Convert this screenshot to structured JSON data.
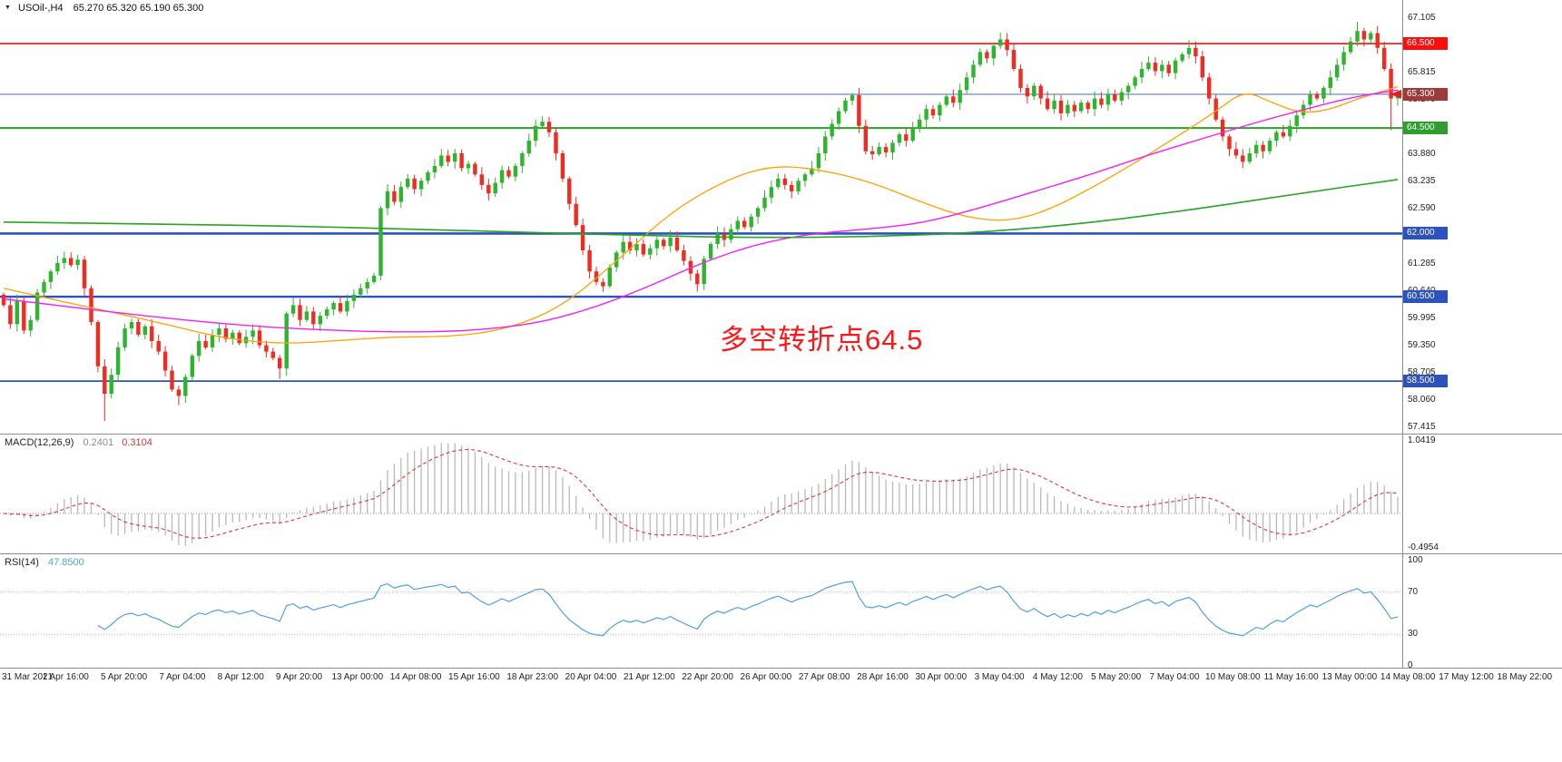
{
  "header": {
    "symbol": "USOil-,H4",
    "ohlc": "65.270 65.320 65.190 65.300"
  },
  "annotation": {
    "text": "多空转折点64.5",
    "color": "#fb1717"
  },
  "colors": {
    "up": "#2db52d",
    "down": "#ef2b22",
    "ma_fast": "#ffa200",
    "ma_mid": "#f520f5",
    "ma_slow": "#28a428",
    "macd_hist": "#b5b5b5",
    "macd_signal": "#e03535",
    "rsi": "#4f9fe8",
    "separator": "#8c8c8c",
    "axis_text": "#222222",
    "arrow": "#e02020"
  },
  "price_axis": {
    "ticks": [
      67.105,
      65.815,
      65.17,
      63.88,
      63.235,
      62.59,
      61.285,
      60.64,
      59.995,
      59.35,
      58.705,
      58.06,
      57.415
    ]
  },
  "hlines": [
    {
      "price": 66.5,
      "label": "66.500",
      "color": "#fe0d0d",
      "label_bg": "#fe0d0d",
      "width": 1.6
    },
    {
      "price": 65.3,
      "label": "65.300",
      "color": "#5b7fc4",
      "label_bg": "#a03a3a",
      "width": 1.1
    },
    {
      "price": 64.5,
      "label": "64.500",
      "color": "#2f9e2f",
      "label_bg": "#2f9e2f",
      "width": 2.0
    },
    {
      "price": 62.0,
      "label": "62.000",
      "color": "#2b52bd",
      "label_bg": "#2b52bd",
      "width": 2.6
    },
    {
      "price": 60.5,
      "label": "60.500",
      "color": "#2b52bd",
      "label_bg": "#2b52bd",
      "width": 2.4
    },
    {
      "price": 58.5,
      "label": "58.500",
      "color": "#2b52bd",
      "label_bg": "#2b52bd",
      "width": 1.8
    }
  ],
  "chart_data": [
    {
      "type": "candlestick",
      "name": "USOil H4 candles",
      "visible_range": [
        57.3,
        67.41
      ],
      "first_open": 60.55,
      "closes": [
        60.3,
        59.85,
        60.4,
        59.7,
        59.95,
        60.6,
        60.85,
        61.1,
        61.3,
        61.42,
        61.25,
        61.38,
        60.7,
        59.9,
        58.85,
        58.2,
        58.65,
        59.3,
        59.75,
        59.9,
        59.6,
        59.8,
        59.45,
        59.2,
        58.75,
        58.3,
        58.15,
        58.6,
        59.1,
        59.45,
        59.3,
        59.6,
        59.75,
        59.5,
        59.65,
        59.4,
        59.55,
        59.7,
        59.35,
        59.2,
        59.05,
        58.8,
        60.1,
        60.3,
        59.95,
        60.15,
        59.85,
        60.05,
        60.2,
        60.35,
        60.15,
        60.4,
        60.55,
        60.7,
        60.85,
        61.0,
        62.6,
        63.0,
        62.75,
        63.1,
        63.3,
        63.05,
        63.25,
        63.45,
        63.6,
        63.85,
        63.7,
        63.9,
        63.55,
        63.65,
        63.4,
        63.15,
        62.95,
        63.2,
        63.5,
        63.35,
        63.6,
        63.9,
        64.2,
        64.55,
        64.65,
        64.4,
        63.9,
        63.3,
        62.7,
        62.2,
        61.6,
        61.1,
        60.85,
        60.75,
        61.2,
        61.55,
        61.8,
        61.6,
        61.75,
        61.5,
        61.65,
        61.85,
        61.7,
        61.9,
        61.6,
        61.35,
        61.05,
        60.8,
        61.4,
        61.75,
        62.0,
        61.85,
        62.1,
        62.3,
        62.15,
        62.4,
        62.6,
        62.85,
        63.1,
        63.3,
        63.15,
        63.0,
        63.25,
        63.4,
        63.55,
        63.9,
        64.3,
        64.6,
        64.9,
        65.15,
        65.28,
        64.55,
        63.95,
        63.88,
        64.05,
        63.92,
        64.15,
        64.35,
        64.2,
        64.5,
        64.7,
        64.95,
        64.8,
        65.05,
        65.25,
        65.1,
        65.4,
        65.7,
        66.0,
        66.3,
        66.15,
        66.45,
        66.6,
        66.35,
        65.9,
        65.45,
        65.25,
        65.5,
        65.2,
        64.95,
        65.15,
        64.85,
        65.05,
        64.9,
        65.1,
        64.95,
        65.2,
        65.05,
        65.3,
        65.15,
        65.35,
        65.5,
        65.7,
        65.9,
        66.05,
        65.85,
        66.0,
        65.8,
        66.1,
        66.25,
        66.4,
        66.2,
        65.7,
        65.2,
        64.7,
        64.3,
        64.0,
        63.85,
        63.7,
        63.9,
        64.1,
        63.95,
        64.2,
        64.4,
        64.3,
        64.55,
        64.8,
        65.05,
        65.3,
        65.2,
        65.45,
        65.7,
        66.0,
        66.3,
        66.55,
        66.8,
        66.6,
        66.75,
        66.4,
        65.9,
        65.2,
        65.3
      ],
      "extremes": {
        "15": {
          "low": 57.55
        },
        "26": {
          "low": 57.93
        },
        "41": {
          "low": 58.55
        },
        "89": {
          "low": 60.62
        },
        "103": {
          "low": 60.62
        },
        "148": {
          "high": 66.76
        },
        "176": {
          "high": 66.58
        },
        "184": {
          "low": 63.55
        },
        "201": {
          "high": 67.02
        },
        "206": {
          "low": 64.45
        }
      }
    },
    {
      "type": "line",
      "name": "ma-fast-orange",
      "color_key": "ma_fast",
      "points": [
        [
          0,
          60.7
        ],
        [
          0.04,
          60.4
        ],
        [
          0.08,
          60.12
        ],
        [
          0.12,
          59.82
        ],
        [
          0.16,
          59.5
        ],
        [
          0.2,
          59.38
        ],
        [
          0.24,
          59.46
        ],
        [
          0.28,
          59.55
        ],
        [
          0.32,
          59.55
        ],
        [
          0.36,
          59.72
        ],
        [
          0.4,
          60.25
        ],
        [
          0.44,
          61.35
        ],
        [
          0.48,
          62.55
        ],
        [
          0.52,
          63.3
        ],
        [
          0.55,
          63.6
        ],
        [
          0.58,
          63.55
        ],
        [
          0.62,
          63.25
        ],
        [
          0.66,
          62.72
        ],
        [
          0.69,
          62.38
        ],
        [
          0.72,
          62.28
        ],
        [
          0.75,
          62.55
        ],
        [
          0.79,
          63.25
        ],
        [
          0.83,
          64.05
        ],
        [
          0.87,
          64.9
        ],
        [
          0.89,
          65.4
        ],
        [
          0.91,
          65.1
        ],
        [
          0.93,
          64.85
        ],
        [
          0.95,
          64.92
        ],
        [
          0.97,
          65.18
        ],
        [
          1,
          65.48
        ]
      ]
    },
    {
      "type": "line",
      "name": "ma-mid-magenta",
      "color_key": "ma_mid",
      "points": [
        [
          0,
          60.45
        ],
        [
          0.05,
          60.25
        ],
        [
          0.1,
          60.05
        ],
        [
          0.16,
          59.85
        ],
        [
          0.22,
          59.72
        ],
        [
          0.28,
          59.66
        ],
        [
          0.33,
          59.68
        ],
        [
          0.38,
          59.85
        ],
        [
          0.42,
          60.2
        ],
        [
          0.46,
          60.7
        ],
        [
          0.5,
          61.3
        ],
        [
          0.54,
          61.75
        ],
        [
          0.58,
          62.0
        ],
        [
          0.62,
          62.1
        ],
        [
          0.66,
          62.25
        ],
        [
          0.7,
          62.6
        ],
        [
          0.74,
          63.0
        ],
        [
          0.78,
          63.4
        ],
        [
          0.82,
          63.85
        ],
        [
          0.86,
          64.25
        ],
        [
          0.9,
          64.65
        ],
        [
          0.94,
          65.0
        ],
        [
          0.97,
          65.25
        ],
        [
          1,
          65.4
        ]
      ]
    },
    {
      "type": "line",
      "name": "ma-slow-green",
      "color_key": "ma_slow",
      "points": [
        [
          0,
          62.27
        ],
        [
          0.1,
          62.23
        ],
        [
          0.2,
          62.18
        ],
        [
          0.3,
          62.1
        ],
        [
          0.38,
          62.02
        ],
        [
          0.46,
          61.95
        ],
        [
          0.54,
          61.9
        ],
        [
          0.62,
          61.92
        ],
        [
          0.7,
          62.02
        ],
        [
          0.78,
          62.25
        ],
        [
          0.86,
          62.6
        ],
        [
          0.93,
          62.95
        ],
        [
          1,
          63.28
        ]
      ]
    },
    {
      "type": "macd",
      "label": "MACD(12,26,9)",
      "params": [
        12,
        26,
        9
      ],
      "values_text": [
        "0.2401",
        "0.3104"
      ],
      "axis_max": 1.0419,
      "axis_min": -0.4954,
      "axis_max_text": "1.0419",
      "axis_min_text": "-0.4954"
    },
    {
      "type": "rsi",
      "label": "RSI(14)",
      "period": 14,
      "value_text": "47.8500",
      "levels": [
        100,
        70,
        30,
        0
      ]
    }
  ],
  "time_axis": {
    "labels": [
      "31 Mar 2021",
      "1 Apr 16:00",
      "5 Apr 20:00",
      "7 Apr 04:00",
      "8 Apr 12:00",
      "9 Apr 20:00",
      "13 Apr 00:00",
      "14 Apr 08:00",
      "15 Apr 16:00",
      "18 Apr 23:00",
      "20 Apr 04:00",
      "21 Apr 12:00",
      "22 Apr 20:00",
      "26 Apr 00:00",
      "27 Apr 08:00",
      "28 Apr 16:00",
      "30 Apr 00:00",
      "3 May 04:00",
      "4 May 12:00",
      "5 May 20:00",
      "7 May 04:00",
      "10 May 08:00",
      "11 May 16:00",
      "13 May 00:00",
      "14 May 08:00",
      "17 May 12:00",
      "18 May 22:00"
    ]
  }
}
